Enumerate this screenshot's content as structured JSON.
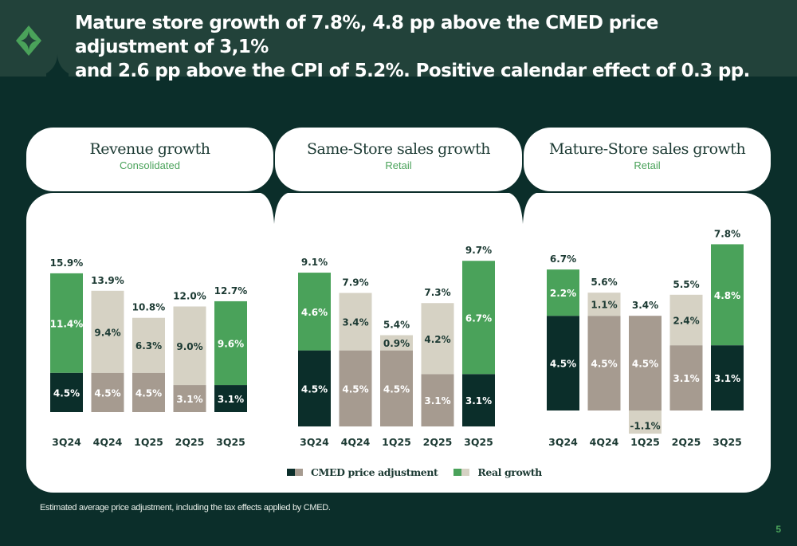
{
  "headline": "Mature store growth of 7.8%, 4.8 pp above the CMED price adjustment of 3,1% and 2.6 pp above the CPI of 5.2%. Positive calendar effect of 0.3 pp.",
  "headline_lines": [
    "Mature store growth of 7.8%, 4.8 pp above the CMED price adjustment of 3,1%",
    "and 2.6 pp above the CPI of 5.2%. Positive calendar effect of 0.3 pp."
  ],
  "colors": {
    "cmed_highlight": "#0b2e2a",
    "cmed_muted": "#a69b90",
    "real_highlight": "#4aa25a",
    "real_muted": "#d6d2c4",
    "header_bg": "#22423a",
    "page_bg": "#0b2e2a"
  },
  "chart_data": [
    {
      "type": "bar",
      "stacked": true,
      "title": "Revenue growth",
      "subtitle": "Consolidated",
      "categories": [
        "3Q24",
        "4Q24",
        "1Q25",
        "2Q25",
        "3Q25"
      ],
      "series": [
        {
          "name": "CMED price adjustment",
          "values": [
            4.5,
            4.5,
            4.5,
            3.1,
            3.1
          ],
          "labels": [
            "4.5%",
            "4.5%",
            "4.5%",
            "3.1%",
            "3.1%"
          ]
        },
        {
          "name": "Real growth",
          "values": [
            11.4,
            9.4,
            6.3,
            9.0,
            9.6
          ],
          "labels": [
            "11.4%",
            "9.4%",
            "6.3%",
            "9.0%",
            "9.6%"
          ]
        }
      ],
      "totals": [
        15.9,
        13.9,
        10.8,
        12.0,
        12.7
      ],
      "total_labels": [
        "15.9%",
        "13.9%",
        "10.8%",
        "12.0%",
        "12.7%"
      ],
      "highlighted": [
        true,
        false,
        false,
        false,
        true
      ],
      "xlabel": "",
      "ylabel": "",
      "ylim": [
        0,
        17
      ]
    },
    {
      "type": "bar",
      "stacked": true,
      "title": "Same-Store sales growth",
      "subtitle": "Retail",
      "categories": [
        "3Q24",
        "4Q24",
        "1Q25",
        "2Q25",
        "3Q25"
      ],
      "series": [
        {
          "name": "CMED price adjustment",
          "values": [
            4.5,
            4.5,
            4.5,
            3.1,
            3.1
          ],
          "labels": [
            "4.5%",
            "4.5%",
            "4.5%",
            "3.1%",
            "3.1%"
          ]
        },
        {
          "name": "Real growth",
          "values": [
            4.6,
            3.4,
            0.9,
            4.2,
            6.7
          ],
          "labels": [
            "4.6%",
            "3.4%",
            "0.9%",
            "4.2%",
            "6.7%"
          ]
        }
      ],
      "totals": [
        9.1,
        7.9,
        5.4,
        7.3,
        9.7
      ],
      "total_labels": [
        "9.1%",
        "7.9%",
        "5.4%",
        "7.3%",
        "9.7%"
      ],
      "highlighted": [
        true,
        false,
        false,
        false,
        true
      ],
      "xlabel": "",
      "ylabel": "",
      "ylim": [
        0,
        10.5
      ]
    },
    {
      "type": "bar",
      "stacked": true,
      "title": "Mature-Store sales growth",
      "subtitle": "Retail",
      "categories": [
        "3Q24",
        "4Q24",
        "1Q25",
        "2Q25",
        "3Q25"
      ],
      "series": [
        {
          "name": "CMED price adjustment",
          "values": [
            4.5,
            4.5,
            4.5,
            3.1,
            3.1
          ],
          "labels": [
            "4.5%",
            "4.5%",
            "4.5%",
            "3.1%",
            "3.1%"
          ]
        },
        {
          "name": "Real growth",
          "values": [
            2.2,
            1.1,
            -1.1,
            2.4,
            4.8
          ],
          "labels": [
            "2.2%",
            "1.1%",
            "-1.1%",
            "2.4%",
            "4.8%"
          ]
        }
      ],
      "totals": [
        6.7,
        5.6,
        3.4,
        5.5,
        7.8
      ],
      "total_labels": [
        "6.7%",
        "5.6%",
        "3.4%",
        "5.5%",
        "7.8%"
      ],
      "highlighted": [
        true,
        false,
        false,
        false,
        true
      ],
      "xlabel": "",
      "ylabel": "",
      "ylim": [
        -1.1,
        8.4
      ]
    }
  ],
  "legend": [
    {
      "label": "CMED price adjustment",
      "swatches": [
        "#0b2e2a",
        "#a69b90"
      ]
    },
    {
      "label": "Real growth",
      "swatches": [
        "#4aa25a",
        "#d6d2c4"
      ]
    }
  ],
  "footnote": "Estimated average price adjustment, including the tax effects applied by CMED.",
  "page_number": "5"
}
